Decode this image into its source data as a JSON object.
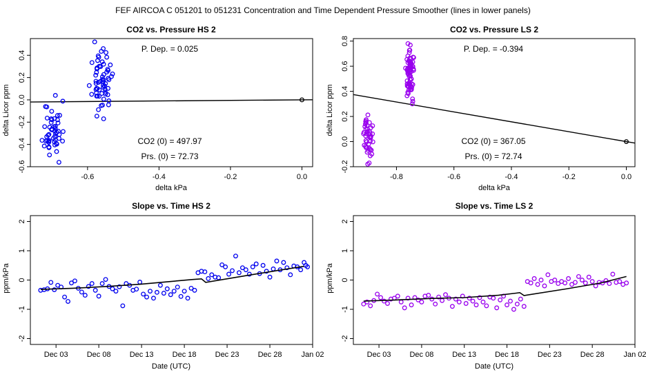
{
  "page_title": "FEF   AIRCOA C   051201 to 051231   Concentration and Time Dependent Pressure Smoother (lines in lower panels)",
  "colors": {
    "hs": "#0000ee",
    "ls": "#9900ee",
    "line": "#000000"
  },
  "chart_data": [
    {
      "id": "co2_pressure_hs",
      "type": "scatter",
      "title": "CO2 vs. Pressure HS 2",
      "xlabel": "delta kPa",
      "ylabel": "delta Licor ppm",
      "xlim": [
        -0.76,
        0.03
      ],
      "ylim": [
        -0.6,
        0.55
      ],
      "xticks": [
        -0.6,
        -0.4,
        -0.2,
        0.0
      ],
      "xtick_labels": [
        "-0.6",
        "-0.4",
        "-0.2",
        "0.0"
      ],
      "yticks": [
        -0.6,
        -0.4,
        -0.2,
        0.0,
        0.2,
        0.4
      ],
      "ytick_labels": [
        "-0.6",
        "-0.4",
        "-0.2",
        "0.0",
        "0.2",
        "0.4"
      ],
      "annotations": {
        "dep": "P. Dep. =  0.025",
        "co2": "CO2 (0) =  497.97",
        "prs": "Prs. (0) =  72.73"
      },
      "fit_line": {
        "x": [
          -0.76,
          0.03
        ],
        "y": [
          -0.019,
          0.001
        ]
      },
      "reference_point": [
        0.0,
        0.0
      ],
      "color": "hs",
      "clusters": [
        {
          "cx": -0.697,
          "cy": -0.27,
          "sx": 0.012,
          "sy": 0.13,
          "n": 48,
          "seed": 11
        },
        {
          "cx": -0.56,
          "cy": 0.16,
          "sx": 0.013,
          "sy": 0.12,
          "n": 62,
          "seed": 23
        }
      ],
      "points": [
        [
          -0.58,
          0.52
        ],
        [
          -0.68,
          -0.56
        ],
        [
          -0.69,
          0.04
        ],
        [
          -0.555,
          -0.17
        ],
        [
          -0.67,
          -0.37
        ],
        [
          -0.72,
          -0.24
        ]
      ]
    },
    {
      "id": "co2_pressure_ls",
      "type": "scatter",
      "title": "CO2 vs. Pressure LS 2",
      "xlabel": "delta kPa",
      "ylabel": "delta Licor ppm",
      "xlim": [
        -0.95,
        0.03
      ],
      "ylim": [
        -0.2,
        0.82
      ],
      "xticks": [
        -0.8,
        -0.6,
        -0.4,
        -0.2,
        0.0
      ],
      "xtick_labels": [
        "-0.8",
        "-0.6",
        "-0.4",
        "-0.2",
        "0.0"
      ],
      "yticks": [
        -0.2,
        0.0,
        0.2,
        0.4,
        0.6,
        0.8
      ],
      "ytick_labels": [
        "-0.2",
        "0.0",
        "0.2",
        "0.4",
        "0.6",
        "0.8"
      ],
      "annotations": {
        "dep": "P. Dep. =  -0.394",
        "co2": "CO2 (0) =  367.05",
        "prs": "Prs. (0) =  72.74"
      },
      "fit_line": {
        "x": [
          -0.95,
          0.03
        ],
        "y": [
          0.374,
          -0.012
        ]
      },
      "reference_point": [
        0.0,
        0.0
      ],
      "color": "ls",
      "clusters": [
        {
          "cx": -0.898,
          "cy": 0.03,
          "sx": 0.007,
          "sy": 0.075,
          "n": 42,
          "seed": 37
        },
        {
          "cx": -0.752,
          "cy": 0.55,
          "sx": 0.007,
          "sy": 0.09,
          "n": 78,
          "seed": 41
        }
      ],
      "points": [
        [
          -0.76,
          0.78
        ],
        [
          -0.9,
          -0.18
        ],
        [
          -0.895,
          -0.17
        ],
        [
          -0.745,
          0.3
        ],
        [
          -0.91,
          0.12
        ]
      ]
    },
    {
      "id": "slope_time_hs",
      "type": "scatter",
      "title": "Slope vs. Time HS 2",
      "xlabel": "Date (UTC)",
      "ylabel": "ppm/kPa",
      "xlim": [
        -1,
        32
      ],
      "ylim": [
        -2.2,
        2.2
      ],
      "xticks": [
        2,
        7,
        12,
        17,
        22,
        27,
        32
      ],
      "xtick_labels": [
        "Dec 03",
        "Dec 08",
        "Dec 13",
        "Dec 18",
        "Dec 23",
        "Dec 28",
        "Jan 02"
      ],
      "yticks": [
        -2,
        -1,
        0,
        1,
        2
      ],
      "ytick_labels": [
        "-2",
        "-1",
        "0",
        "1",
        "2"
      ],
      "color": "hs",
      "smoother": {
        "x": [
          0.2,
          4,
          8,
          12,
          15,
          18,
          19,
          19.5,
          24,
          28,
          31
        ],
        "y": [
          -0.32,
          -0.28,
          -0.22,
          -0.14,
          -0.06,
          0.02,
          0.04,
          -0.08,
          0.14,
          0.33,
          0.47
        ]
      },
      "series": [
        {
          "x": [
            0.2,
            0.6,
            1.0,
            1.4,
            1.8,
            2.2,
            2.6,
            3.0,
            3.4,
            3.8,
            4.2,
            4.6,
            5.0,
            5.4,
            5.8,
            6.2,
            6.6,
            7.0,
            7.4,
            7.8,
            8.2,
            8.6,
            9.0,
            9.4,
            9.8,
            10.2,
            10.6,
            11.0,
            11.4,
            11.8,
            12.2,
            12.6,
            13.0,
            13.4,
            13.8,
            14.2,
            14.6,
            15.0,
            15.4,
            15.8,
            16.2,
            16.6,
            17.0,
            17.4,
            17.8,
            18.2,
            18.6,
            19.0,
            19.4,
            19.8,
            20.2,
            20.6,
            21.0,
            21.4,
            21.8,
            22.2,
            22.6,
            23.0,
            23.4,
            23.8,
            24.2,
            24.6,
            25.0,
            25.4,
            25.8,
            26.2,
            26.6,
            27.0,
            27.4,
            27.8,
            28.2,
            28.6,
            29.0,
            29.4,
            29.8,
            30.2,
            30.6,
            31.0,
            31.2,
            31.4
          ],
          "y": [
            -0.35,
            -0.33,
            -0.3,
            -0.08,
            -0.33,
            -0.18,
            -0.24,
            -0.58,
            -0.73,
            -0.1,
            -0.03,
            -0.28,
            -0.41,
            -0.52,
            -0.22,
            -0.12,
            -0.35,
            -0.55,
            -0.12,
            0.02,
            -0.22,
            -0.3,
            -0.38,
            -0.23,
            -0.88,
            -0.12,
            -0.18,
            -0.35,
            -0.31,
            -0.07,
            -0.48,
            -0.58,
            -0.38,
            -0.62,
            -0.42,
            -0.18,
            -0.45,
            -0.3,
            -0.5,
            -0.38,
            -0.24,
            -0.56,
            -0.38,
            -0.62,
            -0.28,
            -0.35,
            0.25,
            0.3,
            0.28,
            0.05,
            0.18,
            0.1,
            0.08,
            0.52,
            0.45,
            0.2,
            0.32,
            0.82,
            0.25,
            0.42,
            0.35,
            0.2,
            0.45,
            0.55,
            0.22,
            0.5,
            0.3,
            0.1,
            0.38,
            0.65,
            0.35,
            0.6,
            0.42,
            0.18,
            0.48,
            0.45,
            0.35,
            0.6,
            0.5,
            0.45
          ]
        }
      ]
    },
    {
      "id": "slope_time_ls",
      "type": "scatter",
      "title": "Slope vs. Time LS 2",
      "xlabel": "Date (UTC)",
      "ylabel": "ppm/kPa",
      "xlim": [
        -1,
        32
      ],
      "ylim": [
        -2.2,
        2.2
      ],
      "xticks": [
        2,
        7,
        12,
        17,
        22,
        27,
        32
      ],
      "xtick_labels": [
        "Dec 03",
        "Dec 08",
        "Dec 13",
        "Dec 18",
        "Dec 23",
        "Dec 28",
        "Jan 02"
      ],
      "yticks": [
        -2,
        -1,
        0,
        1,
        2
      ],
      "ytick_labels": [
        "-2",
        "-1",
        "0",
        "1",
        "2"
      ],
      "color": "ls",
      "smoother": {
        "x": [
          0.2,
          4,
          8,
          12,
          16,
          18,
          18.5,
          19,
          24,
          28,
          31
        ],
        "y": [
          -0.72,
          -0.68,
          -0.63,
          -0.6,
          -0.52,
          -0.45,
          -0.43,
          -0.53,
          -0.3,
          -0.1,
          0.12
        ]
      },
      "series": [
        {
          "x": [
            0.2,
            0.6,
            1.0,
            1.4,
            1.8,
            2.2,
            2.6,
            3.0,
            3.4,
            3.8,
            4.2,
            4.6,
            5.0,
            5.4,
            5.8,
            6.2,
            6.6,
            7.0,
            7.4,
            7.8,
            8.2,
            8.6,
            9.0,
            9.4,
            9.8,
            10.2,
            10.6,
            11.0,
            11.4,
            11.8,
            12.2,
            12.6,
            13.0,
            13.4,
            13.8,
            14.2,
            14.6,
            15.0,
            15.4,
            15.8,
            16.2,
            16.6,
            17.0,
            17.4,
            17.8,
            18.2,
            18.6,
            19.0,
            19.4,
            19.8,
            20.2,
            20.6,
            21.0,
            21.4,
            21.8,
            22.2,
            22.6,
            23.0,
            23.4,
            23.8,
            24.2,
            24.6,
            25.0,
            25.4,
            25.8,
            26.2,
            26.6,
            27.0,
            27.4,
            27.8,
            28.2,
            28.6,
            29.0,
            29.4,
            29.8,
            30.2,
            30.6,
            31.0
          ],
          "y": [
            -0.82,
            -0.75,
            -0.88,
            -0.7,
            -0.48,
            -0.6,
            -0.72,
            -0.8,
            -0.65,
            -0.62,
            -0.55,
            -0.75,
            -0.95,
            -0.62,
            -0.85,
            -0.6,
            -0.68,
            -0.75,
            -0.55,
            -0.52,
            -0.65,
            -0.82,
            -0.58,
            -0.7,
            -0.5,
            -0.62,
            -0.9,
            -0.65,
            -0.75,
            -0.55,
            -0.8,
            -0.62,
            -0.72,
            -0.85,
            -0.6,
            -0.75,
            -0.88,
            -0.58,
            -0.62,
            -0.95,
            -0.68,
            -0.55,
            -0.85,
            -0.72,
            -1.0,
            -0.82,
            -0.65,
            -0.9,
            -0.05,
            -0.1,
            0.05,
            -0.15,
            0.0,
            -0.2,
            0.18,
            -0.05,
            0.0,
            -0.12,
            -0.05,
            -0.1,
            0.05,
            -0.15,
            -0.08,
            0.12,
            0.0,
            -0.1,
            0.1,
            -0.05,
            -0.2,
            -0.08,
            -0.1,
            -0.02,
            -0.12,
            0.2,
            -0.08,
            -0.05,
            -0.15,
            -0.1
          ]
        }
      ]
    }
  ]
}
